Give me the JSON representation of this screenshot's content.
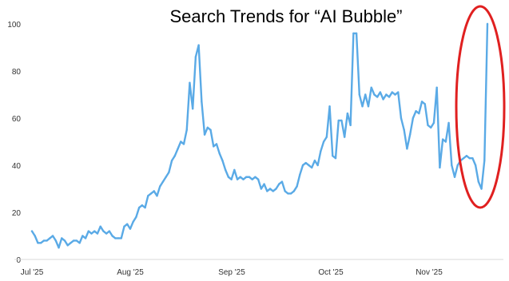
{
  "chart_data": {
    "type": "line",
    "title": "Search Trends for “AI Bubble”",
    "xlabel": "",
    "ylabel": "",
    "x_tick_labels": [
      "Jul '25",
      "Aug '25",
      "Sep '25",
      "Oct '25",
      "Nov '25"
    ],
    "y_ticks": [
      0,
      20,
      40,
      60,
      80,
      100
    ],
    "ylim": [
      0,
      100
    ],
    "grid": false,
    "line_color": "#5aaae6",
    "highlight_color": "#e02020",
    "series": [
      {
        "values": [
          12,
          10,
          7,
          7,
          8,
          8,
          9,
          10,
          8,
          5,
          9,
          8,
          6,
          7,
          8,
          8,
          7,
          10,
          9,
          12,
          11,
          12,
          11,
          14,
          12,
          11,
          12,
          10,
          9,
          9,
          9,
          14,
          15,
          13,
          16,
          18,
          22,
          23,
          22,
          27,
          28,
          29,
          27,
          31,
          33,
          35,
          37,
          42,
          44,
          47,
          50,
          49,
          55,
          75,
          64,
          86,
          91,
          67,
          53,
          56,
          55,
          48,
          49,
          45,
          42,
          38,
          35,
          34,
          38,
          34,
          35,
          34,
          35,
          35,
          34,
          35,
          34,
          30,
          32,
          29,
          30,
          29,
          30,
          32,
          33,
          29,
          28,
          28,
          29,
          31,
          36,
          40,
          41,
          40,
          39,
          42,
          40,
          46,
          50,
          52,
          65,
          44,
          43,
          59,
          59,
          52,
          62,
          57,
          96,
          96,
          70,
          65,
          70,
          65,
          73,
          70,
          69,
          71,
          68,
          70,
          69,
          71,
          70,
          71,
          60,
          55,
          47,
          53,
          60,
          63,
          62,
          67,
          66,
          57,
          56,
          58,
          73,
          39,
          51,
          50,
          58,
          40,
          35,
          40,
          42,
          43,
          44,
          43,
          43,
          40,
          33,
          30,
          42,
          100
        ],
        "highlighted_last_point": true
      }
    ]
  }
}
